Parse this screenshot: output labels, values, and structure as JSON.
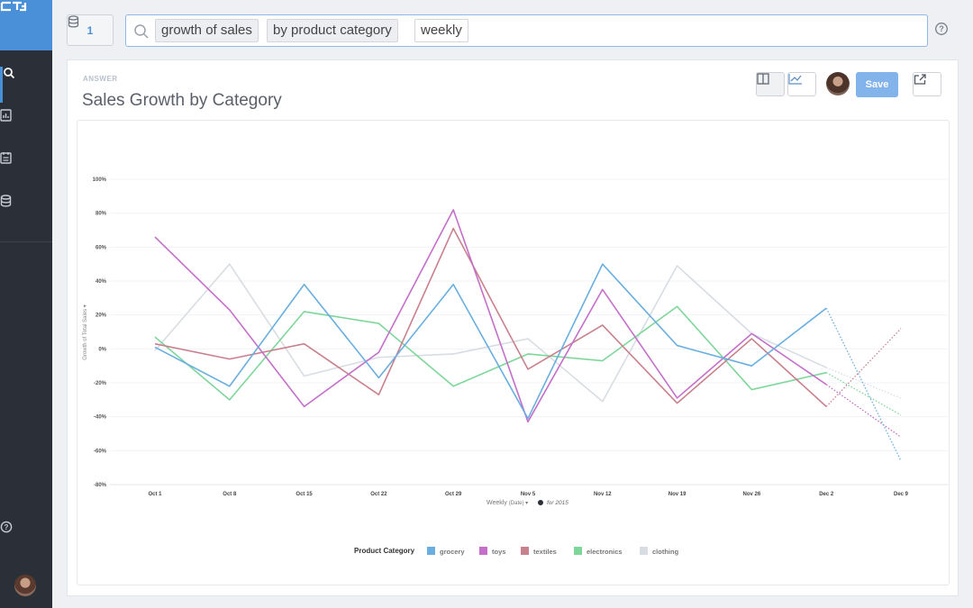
{
  "search": {
    "datasource_count": "1",
    "tokens": [
      "growth of sales",
      "by product category",
      "weekly"
    ]
  },
  "answer": {
    "label": "ANSWER",
    "title": "Sales Growth by Category",
    "save_label": "Save"
  },
  "icons": {
    "logo": "thoughtspot-logo",
    "nav": [
      "search-icon",
      "answers-icon",
      "pinboards-icon",
      "data-icon"
    ],
    "help": "help-icon",
    "toolbar": [
      "table-icon",
      "line-chart-icon",
      "share-icon"
    ]
  },
  "colors": {
    "accent": "#4a90d9",
    "sidebar": "#2b2f37",
    "save_button": "#82b3ea"
  },
  "chart_data": {
    "type": "line",
    "ylabel": "Growth of Total Sales",
    "xlabel_main": "Weekly",
    "xlabel_qualifier": "(Date)",
    "xlabel_filter": "for 2015",
    "x": [
      "Oct 1",
      "Oct 8",
      "Oct 15",
      "Oct 22",
      "Oct 29",
      "Nov 5",
      "Nov 12",
      "Nov 19",
      "Nov 26",
      "Dec 2",
      "Dec 9"
    ],
    "yticks": [
      "100%",
      "80%",
      "60%",
      "40%",
      "20%",
      "0%",
      "-20%",
      "-40%",
      "-60%",
      "-80%"
    ],
    "ylim": [
      -80,
      100
    ],
    "legend_title": "Product Category",
    "legend_position": "bottom",
    "last_point_dotted": true,
    "series": [
      {
        "name": "grocery",
        "color": "#6aaee0",
        "values": [
          1,
          -22,
          38,
          -17,
          38,
          -41,
          50,
          2,
          -10,
          24,
          -66
        ]
      },
      {
        "name": "toys",
        "color": "#c46fc9",
        "values": [
          66,
          23,
          -34,
          -2,
          82,
          -43,
          35,
          -29,
          9,
          -21,
          -52
        ]
      },
      {
        "name": "textiles",
        "color": "#c9808d",
        "values": [
          3,
          -6,
          3,
          -27,
          71,
          -12,
          14,
          -32,
          6,
          -34,
          12
        ]
      },
      {
        "name": "electronics",
        "color": "#7fd69a",
        "values": [
          7,
          -30,
          22,
          15,
          -22,
          -3,
          -7,
          25,
          -24,
          -14,
          -39
        ]
      },
      {
        "name": "clothing",
        "color": "#d7dde3",
        "values": [
          -1,
          50,
          -16,
          -5,
          -3,
          6,
          -31,
          49,
          9,
          -11,
          -29
        ]
      }
    ]
  }
}
